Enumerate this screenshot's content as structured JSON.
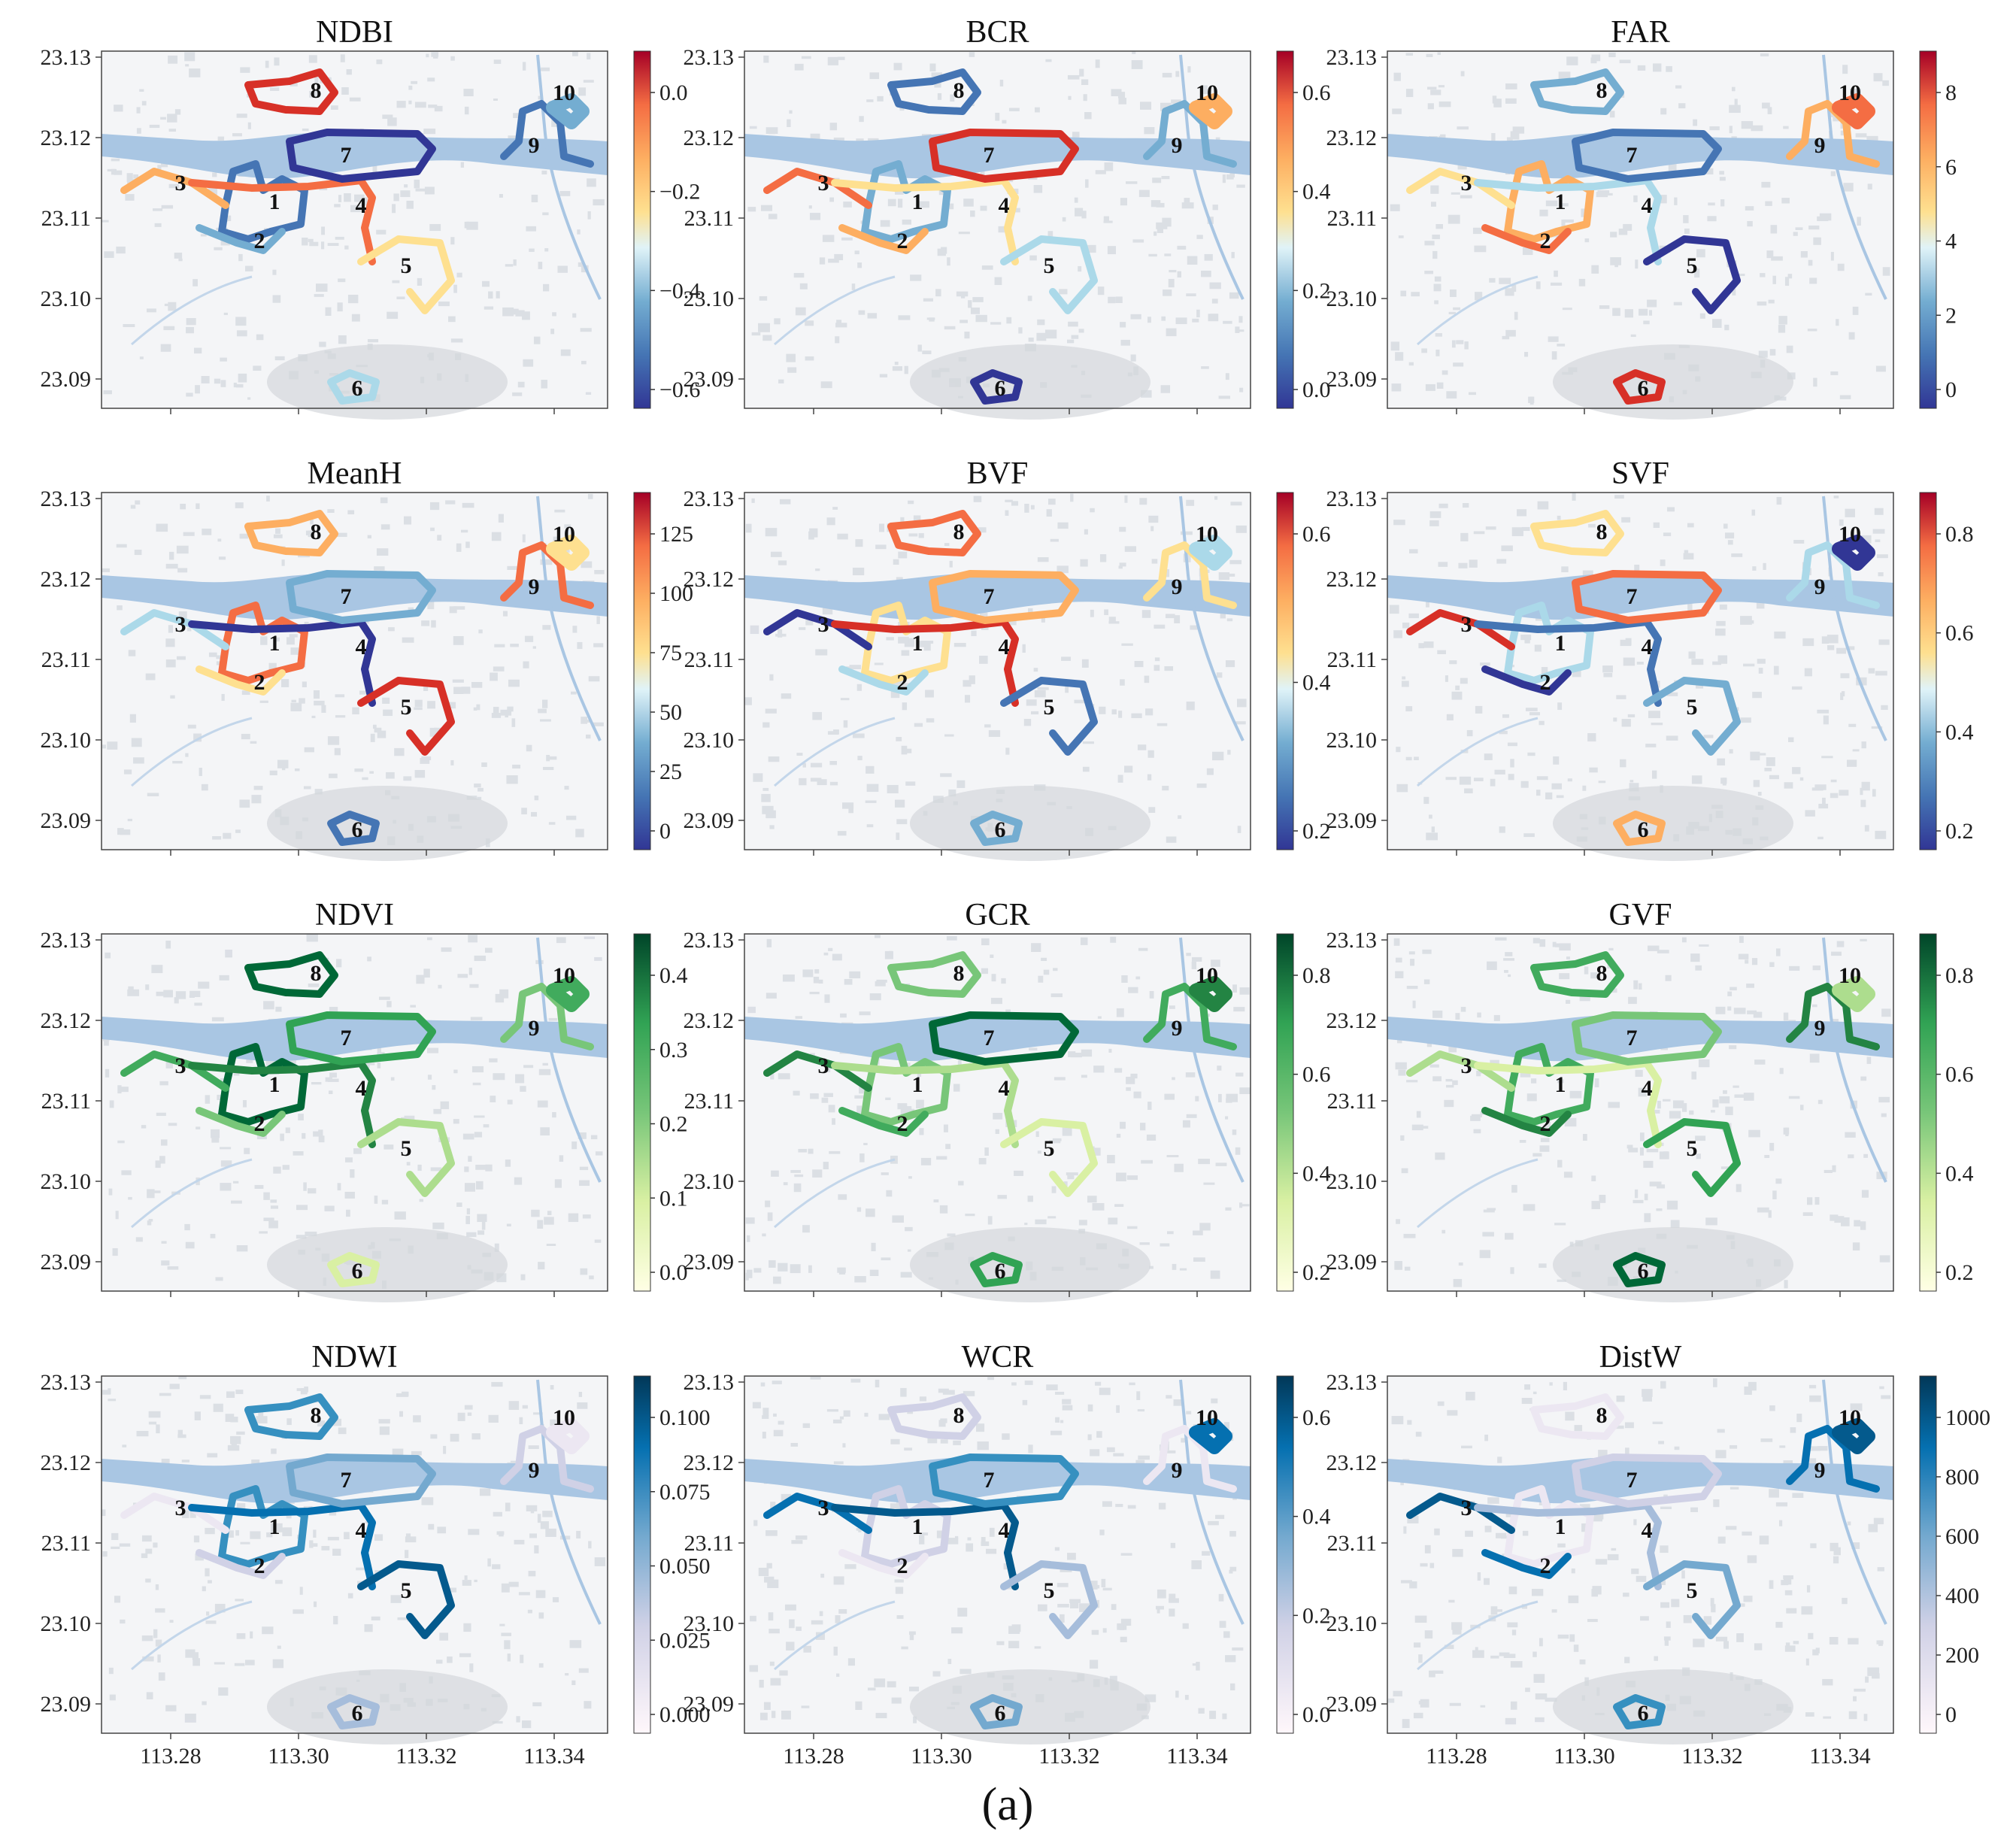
{
  "figure_label": "(a)",
  "lat_ticks": [
    "23.13",
    "23.12",
    "23.11",
    "23.10",
    "23.09"
  ],
  "lon_ticks": [
    "113.28",
    "113.30",
    "113.32",
    "113.34"
  ],
  "route_labels": [
    "1",
    "2",
    "3",
    "4",
    "5",
    "6",
    "7",
    "8",
    "9",
    "10"
  ],
  "colors": {
    "river": "#a9c6e3",
    "basemap": "#f4f5f7",
    "building": "#d9dde3",
    "road": "#bfc6cf"
  },
  "panels": [
    {
      "title": "NDBI",
      "cmap": "RdYlBu_r",
      "cbar_ticks": [
        "0.0",
        "−0.2",
        "−0.4",
        "−0.6"
      ]
    },
    {
      "title": "BCR",
      "cmap": "RdYlBu_r",
      "cbar_ticks": [
        "0.6",
        "0.4",
        "0.2",
        "0.0"
      ]
    },
    {
      "title": "FAR",
      "cmap": "RdYlBu_r",
      "cbar_ticks": [
        "8",
        "6",
        "4",
        "2",
        "0"
      ]
    },
    {
      "title": "MeanH",
      "cmap": "RdYlBu_r",
      "cbar_ticks": [
        "125",
        "100",
        "75",
        "50",
        "25",
        "0"
      ]
    },
    {
      "title": "BVF",
      "cmap": "RdYlBu_r",
      "cbar_ticks": [
        "0.6",
        "0.4",
        "0.2"
      ]
    },
    {
      "title": "SVF",
      "cmap": "RdYlBu_r",
      "cbar_ticks": [
        "0.8",
        "0.6",
        "0.4",
        "0.2"
      ]
    },
    {
      "title": "NDVI",
      "cmap": "YlGn",
      "cbar_ticks": [
        "0.4",
        "0.3",
        "0.2",
        "0.1",
        "0.0"
      ]
    },
    {
      "title": "GCR",
      "cmap": "YlGn",
      "cbar_ticks": [
        "0.8",
        "0.6",
        "0.4",
        "0.2"
      ]
    },
    {
      "title": "GVF",
      "cmap": "YlGn",
      "cbar_ticks": [
        "0.8",
        "0.6",
        "0.4",
        "0.2"
      ]
    },
    {
      "title": "NDWI",
      "cmap": "PuBu",
      "cbar_ticks": [
        "0.100",
        "0.075",
        "0.050",
        "0.025",
        "0.000"
      ]
    },
    {
      "title": "WCR",
      "cmap": "PuBu",
      "cbar_ticks": [
        "0.6",
        "0.4",
        "0.2",
        "0.0"
      ]
    },
    {
      "title": "DistW",
      "cmap": "PuBu",
      "cbar_ticks": [
        "1000",
        "800",
        "600",
        "400",
        "200",
        "0"
      ]
    }
  ]
}
